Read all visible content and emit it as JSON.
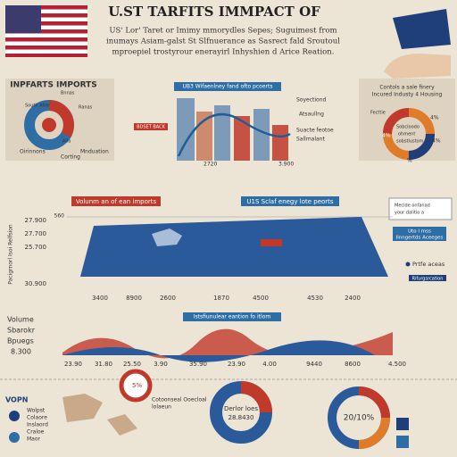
{
  "header": {
    "title": "U.ST TARFITS IMMPACT OF",
    "subtitle": [
      "US' Lor' Taret or Imimy mmorydles Sepes;  Suguimest from",
      "inumays Asiam-galst St Slfnuerance as Sasrect fald Sroutoul",
      "mproepiel trostyrour enerayirl Inhyshien d Arice Reation."
    ]
  },
  "imports_panel": {
    "title": "INPFARTS IMPORTS",
    "labels": [
      "South Afrer",
      "Bnnas",
      "Ranas",
      "Alla",
      "Oirinnons",
      "Corting",
      "Mnduation"
    ]
  },
  "trend_panel": {
    "title": "UB3 Wifaenlney fand ofto pcoerts",
    "tag": "BDSET BACK",
    "labels": [
      "Soyectiond",
      "Atsaullng",
      "Suacte feotoe",
      "Sallmalant"
    ],
    "x_labels": [
      "2720",
      "3.900"
    ]
  },
  "right_panel": {
    "title": [
      "Contols a sale finery",
      "Incured Industy 4 Housing"
    ],
    "labels": [
      "Fecttie",
      "Sobcioodo",
      "ohment",
      "sobstlustom"
    ],
    "percents": [
      "4%",
      "4%",
      "4%",
      "%"
    ]
  },
  "map_panel": {
    "banners": [
      "Volunm an of ean imports",
      "U1S Sclaf enegy lote peorts"
    ],
    "note": [
      "Mecide onfanad",
      "your dalitio a"
    ],
    "y_title": "Pacigrnorl Isoi Relfsion",
    "y_labels": [
      "27.900",
      "27.700",
      "25.700",
      "30.900"
    ],
    "axis_top": "560",
    "x_labels": [
      "3400",
      "8900",
      "2600",
      "1870",
      "4500",
      "4530",
      "2400"
    ],
    "side": [
      "Uto I mss",
      "Iinngertds Aceeges"
    ],
    "legend": [
      "Prtfe aceas",
      "Rifurgsrcation"
    ]
  },
  "wave_panel": {
    "title": "Istsfiunulear eantion fo itlom",
    "left_labels": [
      "Volume",
      "Sbarokr",
      "Bpuegs",
      "8.300"
    ],
    "x_labels": [
      "23.90",
      "31.80",
      "25.50",
      "3.90",
      "35.90",
      "23.90",
      "4.00",
      "9440",
      "8600",
      "4.500"
    ]
  },
  "bottom": {
    "logo": "VOPN",
    "list": [
      "Wolpst",
      "Colaore",
      "Inslaord",
      "Craloe",
      "Maor"
    ],
    "caption": [
      "Cotoonseal Ooecloal",
      "lolaeun"
    ],
    "pct": "5%",
    "donut": [
      "Derlor loes",
      "28.8430"
    ],
    "ratio": "20/10%"
  }
}
